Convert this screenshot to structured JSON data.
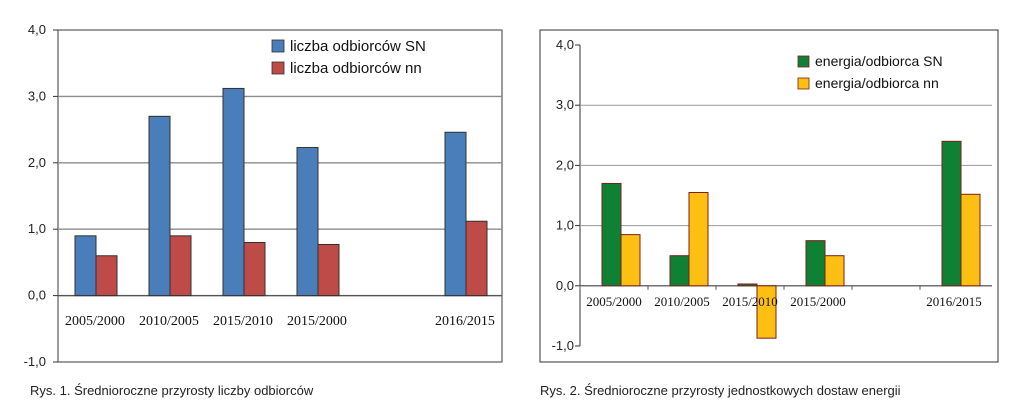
{
  "chart_data": [
    {
      "type": "bar",
      "caption": "Rys. 1. Średnioroczne przyrosty liczby odbiorców",
      "categories": [
        "2005/2000",
        "2010/2005",
        "2015/2010",
        "2015/2000",
        "",
        "2016/2015"
      ],
      "series": [
        {
          "name": "liczba odbiorców SN",
          "color": "#4a7ebb",
          "values": [
            0.9,
            2.7,
            3.12,
            2.23,
            null,
            2.46
          ]
        },
        {
          "name": "liczba odbiorców nn",
          "color": "#be4b48",
          "values": [
            0.6,
            0.9,
            0.8,
            0.77,
            null,
            1.12
          ]
        }
      ],
      "ylim": [
        -1.0,
        4.0
      ],
      "yticks": [
        "4,0",
        "3,0",
        "2,0",
        "1,0",
        "0,0",
        "-1,0"
      ],
      "grid": true,
      "legend_position": "top-right"
    },
    {
      "type": "bar",
      "caption": "Rys. 2. Średnioroczne przyrosty jednostkowych dostaw energii",
      "categories": [
        "2005/2000",
        "2010/2005",
        "2015/2010",
        "2015/2000",
        "",
        "2016/2015"
      ],
      "series": [
        {
          "name": "energia/odbiorca SN",
          "color": "#0e8135",
          "values": [
            1.7,
            0.5,
            0.03,
            0.75,
            null,
            2.4
          ]
        },
        {
          "name": "energia/odbiorca nn",
          "color": "#fdbf11",
          "values": [
            0.85,
            1.55,
            -0.87,
            0.5,
            null,
            1.52
          ]
        }
      ],
      "ylim": [
        -1.0,
        4.0
      ],
      "yticks": [
        "4,0",
        "3,0",
        "2,0",
        "1,0",
        "0,0",
        "-1,0"
      ],
      "grid": true,
      "legend_position": "top-left"
    }
  ]
}
